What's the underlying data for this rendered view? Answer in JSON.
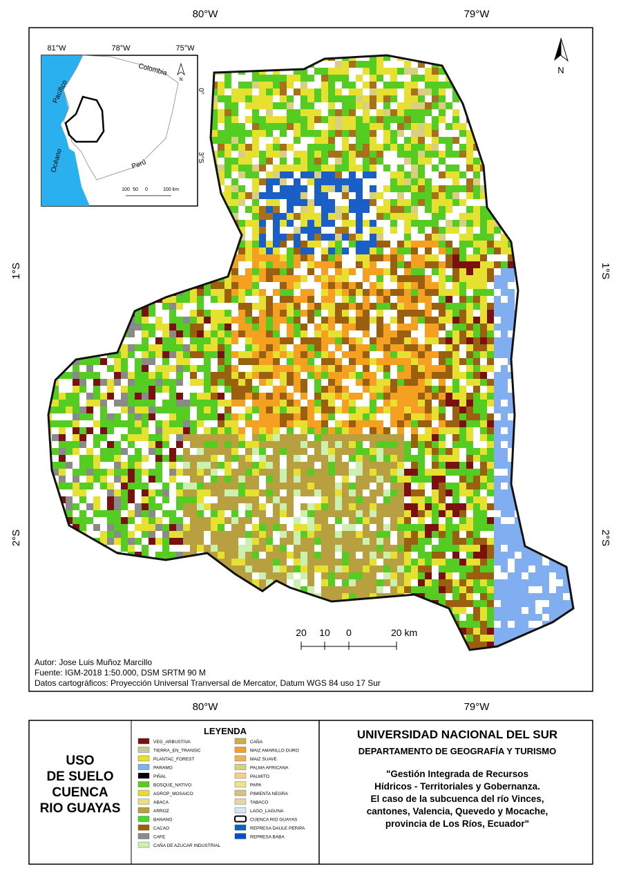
{
  "map": {
    "lon_labels": [
      "80°W",
      "79°W"
    ],
    "lat_labels": [
      "1°S",
      "2°S"
    ],
    "north": "N",
    "scale": [
      "20",
      "10",
      "0",
      "20 km"
    ],
    "credits": [
      "Autor: Jose Luis Muñoz Marcillo",
      "Fuente: IGM-2018 1:50.000, DSM SRTM 90 M",
      "Datos cartográficos: Proyección Universal Tranversal de Mercator, Datum WGS 84 uso 17 Sur"
    ],
    "inset": {
      "lon_labels": [
        "81°W",
        "78°W",
        "75°W"
      ],
      "lat_labels": [
        "0°",
        "3°S"
      ],
      "places": [
        "Colombia",
        "Pacífico",
        "Océano",
        "Perú"
      ],
      "scale": [
        "100",
        "50",
        "0",
        "100 km"
      ],
      "north": "N"
    }
  },
  "title_block": {
    "lines": [
      "USO",
      "DE SUELO",
      "CUENCA",
      "RIO GUAYAS"
    ]
  },
  "legend": {
    "title": "LEYENDA",
    "items": [
      {
        "label": "VEG_ARBUSTIVA",
        "color": "#7b1010"
      },
      {
        "label": "TIERRA_EN_TRANSIC",
        "color": "#c8c8a0"
      },
      {
        "label": "PLANTAC_FOREST",
        "color": "#e6e030"
      },
      {
        "label": "PARAMO",
        "color": "#80aef0"
      },
      {
        "label": "PIÑAL",
        "color": "#000000"
      },
      {
        "label": "BOSQUE_NATIVO",
        "color": "#55cc22"
      },
      {
        "label": "AGROP_MOSAICO",
        "color": "#e8d840"
      },
      {
        "label": "ABACA",
        "color": "#e8e080"
      },
      {
        "label": "ARROZ",
        "color": "#b8a040"
      },
      {
        "label": "BANANO",
        "color": "#44dd22"
      },
      {
        "label": "CACAO",
        "color": "#9a6010"
      },
      {
        "label": "CAFE",
        "color": "#8a8a8a"
      },
      {
        "label": "CAÑA DE AZUCAR INDUSTRIAL",
        "color": "#ccf0b0"
      },
      {
        "label": "CAÑA",
        "color": "#c8b050"
      },
      {
        "label": "MAIZ AMARILLO DURO",
        "color": "#f5a020"
      },
      {
        "label": "MAIZ SUAVE",
        "color": "#f0b060"
      },
      {
        "label": "PALMA AFRICANA",
        "color": "#d8d080"
      },
      {
        "label": "PALMITO",
        "color": "#f0d090"
      },
      {
        "label": "PAPA",
        "color": "#f0e090"
      },
      {
        "label": "PIMIENTA NEGRA",
        "color": "#d8c080"
      },
      {
        "label": "TABACO",
        "color": "#e0d8a8"
      },
      {
        "label": "LAGO_LAGUNA",
        "color": "#d0e8f8"
      },
      {
        "label": "CUENCA RIO GUAYAS",
        "color": "#000000",
        "symbol": "outline"
      },
      {
        "label": "REPRESA DAULE PERIPA",
        "color": "#1060c0"
      },
      {
        "label": "REPRESA BABA",
        "color": "#0050c8"
      }
    ]
  },
  "institution": {
    "name": "UNIVERSIDAD NACIONAL DEL SUR",
    "department": "DEPARTAMENTO DE GEOGRAFÍA Y TURISMO",
    "project_lines": [
      "\"Gestión Integrada de Recursos",
      "Hídricos - Territoriales y Gobernanza.",
      "El caso de la subcuenca del río Vinces,",
      "cantones, Valencia, Quevedo y Mocache,",
      "provincia de Los Ríos, Ecuador\""
    ]
  }
}
